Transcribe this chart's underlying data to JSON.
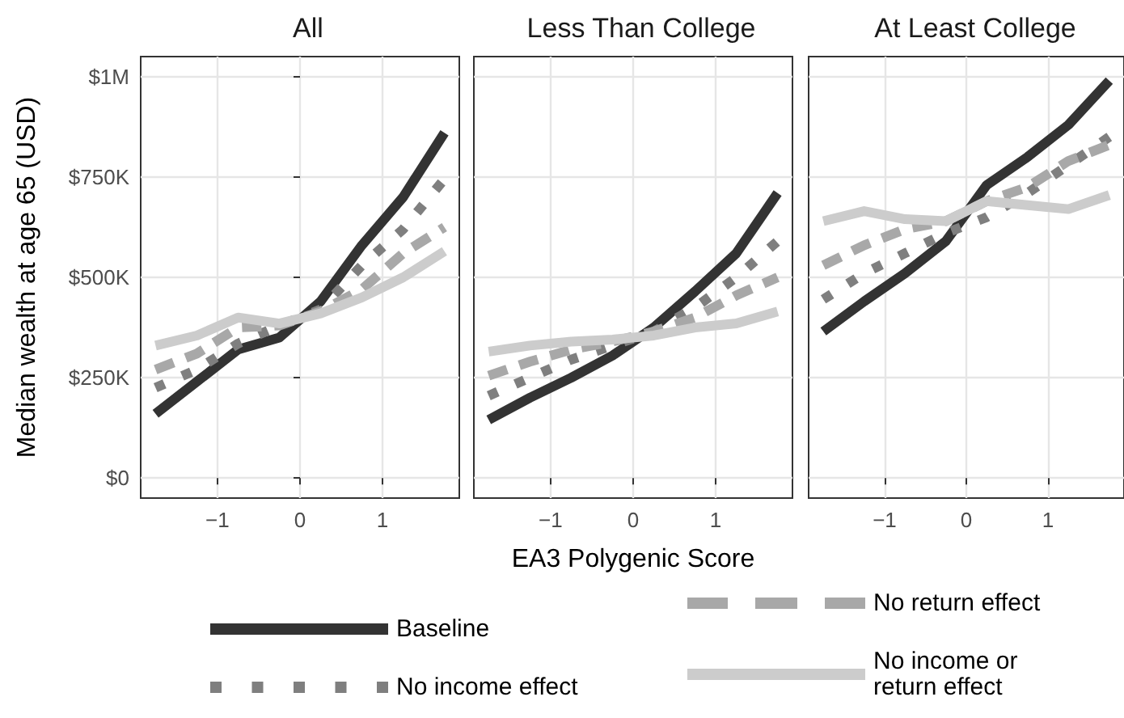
{
  "chart_data": [
    {
      "type": "line",
      "title": "All",
      "ylabel": "Median wealth at age 65 (USD)",
      "legend": "bottom",
      "grid": true,
      "marker": "none",
      "x": [
        -1.75,
        -1.25,
        -0.75,
        -0.25,
        0.25,
        0.75,
        1.25,
        1.75
      ],
      "xlim": [
        -1.93,
        1.93
      ],
      "xticks": [
        {
          "value": -1,
          "label": "−1"
        },
        {
          "value": 0,
          "label": "0"
        },
        {
          "value": 1,
          "label": "1"
        }
      ],
      "ylim": [
        -50000,
        1050000
      ],
      "yticks": [
        {
          "value": 0,
          "label": "$0"
        },
        {
          "value": 250000,
          "label": "$250K"
        },
        {
          "value": 500000,
          "label": "$500K"
        },
        {
          "value": 750000,
          "label": "$750K"
        },
        {
          "value": 1000000,
          "label": "$1M"
        }
      ],
      "series": [
        {
          "name": "Baseline",
          "color": "#333333",
          "line_style": "solid",
          "values": [
            160000,
            240000,
            320000,
            350000,
            440000,
            580000,
            700000,
            860000
          ]
        },
        {
          "name": "No income effect",
          "color": "#7f7f7f",
          "line_style": "dotted",
          "values": [
            225000,
            270000,
            335000,
            380000,
            420000,
            530000,
            620000,
            745000
          ]
        },
        {
          "name": "No return effect",
          "color": "#a8a8a8",
          "line_style": "dashed",
          "values": [
            270000,
            310000,
            375000,
            380000,
            415000,
            470000,
            560000,
            625000
          ]
        },
        {
          "name": "No income or return effect",
          "color": "#cccccc",
          "line_style": "solid",
          "values": [
            330000,
            355000,
            400000,
            385000,
            410000,
            450000,
            500000,
            565000
          ]
        }
      ]
    },
    {
      "type": "line",
      "title": "Less Than College",
      "xlabel": "EA3 Polygenic Score",
      "grid": true,
      "tick_labels": "x",
      "marker": "none",
      "x": [
        -1.75,
        -1.25,
        -0.75,
        -0.25,
        0.25,
        0.75,
        1.25,
        1.75
      ],
      "xlim": [
        -1.93,
        1.93
      ],
      "xticks": [
        {
          "value": -1,
          "label": "−1"
        },
        {
          "value": 0,
          "label": "0"
        },
        {
          "value": 1,
          "label": "1"
        }
      ],
      "ylim": [
        -50000,
        1050000
      ],
      "yticks": [
        0,
        250000,
        500000,
        750000,
        1000000
      ],
      "series": [
        {
          "color": "#333333",
          "line_style": "solid",
          "values": [
            145000,
            200000,
            250000,
            305000,
            375000,
            465000,
            560000,
            710000
          ]
        },
        {
          "color": "#7f7f7f",
          "line_style": "dotted",
          "values": [
            205000,
            250000,
            295000,
            330000,
            365000,
            425000,
            500000,
            590000
          ]
        },
        {
          "color": "#a8a8a8",
          "line_style": "dashed",
          "values": [
            255000,
            290000,
            320000,
            340000,
            365000,
            400000,
            455000,
            500000
          ]
        },
        {
          "color": "#cccccc",
          "line_style": "solid",
          "values": [
            315000,
            330000,
            340000,
            345000,
            355000,
            375000,
            385000,
            415000
          ]
        }
      ]
    },
    {
      "type": "line",
      "title": "At Least College",
      "grid": true,
      "tick_labels": "x",
      "marker": "none",
      "x": [
        -1.75,
        -1.25,
        -0.75,
        -0.25,
        0.25,
        0.75,
        1.25,
        1.75
      ],
      "xlim": [
        -1.93,
        1.93
      ],
      "xticks": [
        {
          "value": -1,
          "label": "−1"
        },
        {
          "value": 0,
          "label": "0"
        },
        {
          "value": 1,
          "label": "1"
        }
      ],
      "ylim": [
        -50000,
        1050000
      ],
      "yticks": [
        0,
        250000,
        500000,
        750000,
        1000000
      ],
      "series": [
        {
          "color": "#333333",
          "line_style": "solid",
          "values": [
            365000,
            440000,
            510000,
            590000,
            730000,
            800000,
            880000,
            990000
          ]
        },
        {
          "color": "#7f7f7f",
          "line_style": "dotted",
          "values": [
            445000,
            510000,
            560000,
            610000,
            650000,
            710000,
            780000,
            850000
          ]
        },
        {
          "color": "#a8a8a8",
          "line_style": "dashed",
          "values": [
            530000,
            580000,
            620000,
            640000,
            690000,
            725000,
            790000,
            830000
          ]
        },
        {
          "color": "#cccccc",
          "line_style": "solid",
          "values": [
            640000,
            665000,
            645000,
            640000,
            690000,
            680000,
            670000,
            705000
          ]
        }
      ]
    }
  ]
}
